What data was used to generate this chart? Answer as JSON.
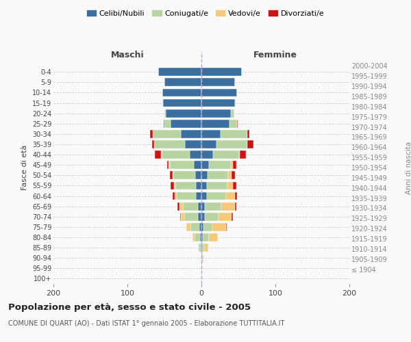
{
  "age_groups": [
    "100+",
    "95-99",
    "90-94",
    "85-89",
    "80-84",
    "75-79",
    "70-74",
    "65-69",
    "60-64",
    "55-59",
    "50-54",
    "45-49",
    "40-44",
    "35-39",
    "30-34",
    "25-29",
    "20-24",
    "15-19",
    "10-14",
    "5-9",
    "0-4"
  ],
  "birth_years": [
    "≤ 1904",
    "1905-1909",
    "1910-1914",
    "1915-1919",
    "1920-1924",
    "1925-1929",
    "1930-1934",
    "1935-1939",
    "1940-1944",
    "1945-1949",
    "1950-1954",
    "1955-1959",
    "1960-1964",
    "1965-1969",
    "1970-1974",
    "1975-1979",
    "1980-1984",
    "1985-1989",
    "1990-1994",
    "1995-1999",
    "2000-2004"
  ],
  "maschi": {
    "celibi": [
      0,
      0,
      0,
      1,
      2,
      3,
      5,
      5,
      7,
      7,
      8,
      10,
      16,
      22,
      28,
      42,
      48,
      52,
      53,
      50,
      58
    ],
    "coniugati": [
      0,
      0,
      1,
      3,
      7,
      12,
      18,
      20,
      26,
      28,
      30,
      33,
      38,
      42,
      38,
      8,
      2,
      1,
      0,
      0,
      0
    ],
    "vedovi": [
      0,
      0,
      0,
      1,
      3,
      5,
      5,
      5,
      3,
      2,
      1,
      1,
      1,
      0,
      0,
      0,
      0,
      0,
      0,
      0,
      0
    ],
    "divorziati": [
      0,
      0,
      0,
      0,
      0,
      0,
      1,
      2,
      3,
      5,
      4,
      2,
      8,
      3,
      3,
      1,
      0,
      0,
      0,
      0,
      0
    ]
  },
  "femmine": {
    "nubili": [
      0,
      0,
      0,
      1,
      2,
      3,
      5,
      5,
      7,
      7,
      8,
      10,
      16,
      20,
      26,
      38,
      40,
      45,
      48,
      45,
      55
    ],
    "coniugate": [
      0,
      0,
      1,
      3,
      8,
      12,
      18,
      22,
      26,
      28,
      28,
      30,
      35,
      42,
      36,
      10,
      4,
      1,
      0,
      0,
      0
    ],
    "vedove": [
      0,
      1,
      2,
      5,
      12,
      18,
      18,
      18,
      12,
      8,
      5,
      3,
      1,
      0,
      0,
      0,
      0,
      0,
      0,
      0,
      0
    ],
    "divorziate": [
      0,
      0,
      0,
      0,
      0,
      1,
      2,
      2,
      3,
      4,
      4,
      4,
      8,
      8,
      3,
      1,
      0,
      0,
      0,
      0,
      0
    ]
  },
  "colors": {
    "celibi": "#3b6fa0",
    "coniugati": "#b8d4a0",
    "vedovi": "#f5c87a",
    "divorziati": "#cc1414"
  },
  "xlim": 200,
  "title": "Popolazione per età, sesso e stato civile - 2005",
  "subtitle": "COMUNE DI QUART (AO) - Dati ISTAT 1° gennaio 2005 - Elaborazione TUTTITALIA.IT",
  "ylabel_left": "Fasce di età",
  "ylabel_right": "Anni di nascita",
  "xlabel_maschi": "Maschi",
  "xlabel_femmine": "Femmine",
  "bg_color": "#f9f9f9",
  "grid_color": "#cccccc"
}
